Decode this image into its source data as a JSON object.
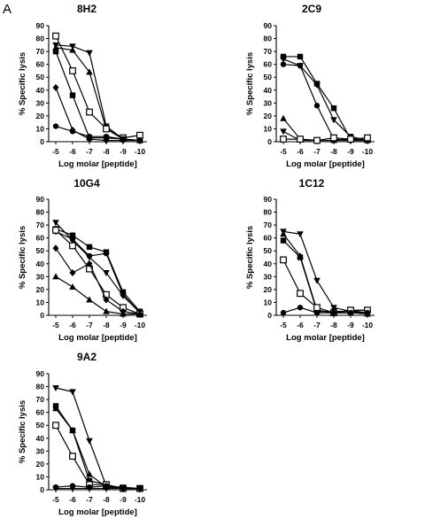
{
  "figure": {
    "panel_letter": "A"
  },
  "chart_data": [
    {
      "type": "line",
      "title": "8H2",
      "xlabel": "Log molar [peptide]",
      "ylabel": "% Specific lysis",
      "x": [
        -5,
        -6,
        -7,
        -8,
        -9,
        -10
      ],
      "xtick_labels": [
        "-5",
        "-6",
        "-7",
        "-8",
        "-9",
        "-10"
      ],
      "ylim": [
        0,
        90
      ],
      "yticks": [
        0,
        10,
        20,
        30,
        40,
        50,
        60,
        70,
        80,
        90
      ],
      "grid": false,
      "series": [
        {
          "marker": "triangle-down",
          "values": [
            75,
            74,
            69,
            12,
            2,
            1
          ]
        },
        {
          "marker": "triangle-up",
          "values": [
            73,
            71,
            54,
            10,
            2,
            1
          ]
        },
        {
          "marker": "square-open",
          "values": [
            82,
            55,
            23,
            10,
            3,
            5
          ]
        },
        {
          "marker": "square",
          "values": [
            70,
            36,
            3,
            3,
            2,
            1
          ]
        },
        {
          "marker": "diamond",
          "values": [
            42,
            9,
            2,
            1,
            1,
            1
          ]
        },
        {
          "marker": "circle",
          "values": [
            12,
            8,
            4,
            4,
            2,
            1
          ]
        }
      ]
    },
    {
      "type": "line",
      "title": "2C9",
      "xlabel": "Log molar [peptide]",
      "ylabel": "% Specific lysis",
      "x": [
        -5,
        -6,
        -7,
        -8,
        -9,
        -10
      ],
      "xtick_labels": [
        "-5",
        "-6",
        "-7",
        "-8",
        "-9",
        "-10"
      ],
      "ylim": [
        0,
        90
      ],
      "yticks": [
        0,
        10,
        20,
        30,
        40,
        50,
        60,
        70,
        80,
        90
      ],
      "grid": false,
      "series": [
        {
          "marker": "square",
          "values": [
            66,
            66,
            45,
            26,
            2,
            1
          ]
        },
        {
          "marker": "triangle-down",
          "values": [
            64,
            59,
            44,
            17,
            4,
            1
          ]
        },
        {
          "marker": "circle",
          "values": [
            60,
            59,
            28,
            2,
            1,
            1
          ]
        },
        {
          "marker": "triangle-up",
          "values": [
            18,
            2,
            1,
            1,
            2,
            1
          ]
        },
        {
          "marker": "triangle-down",
          "values": [
            8,
            1,
            1,
            1,
            1,
            1
          ]
        },
        {
          "marker": "square-open",
          "values": [
            2,
            2,
            1,
            3,
            2,
            3
          ]
        }
      ]
    },
    {
      "type": "line",
      "title": "10G4",
      "xlabel": "Log molar [peptide]",
      "ylabel": "% Specific lysis",
      "x": [
        -5,
        -6,
        -7,
        -8,
        -9,
        -10
      ],
      "xtick_labels": [
        "-5",
        "-6",
        "-7",
        "-8",
        "-9",
        "-10"
      ],
      "ylim": [
        0,
        90
      ],
      "yticks": [
        0,
        10,
        20,
        30,
        40,
        50,
        60,
        70,
        80,
        90
      ],
      "grid": false,
      "series": [
        {
          "marker": "triangle-down",
          "values": [
            72,
            58,
            45,
            33,
            15,
            2
          ]
        },
        {
          "marker": "square",
          "values": [
            67,
            62,
            53,
            49,
            18,
            3
          ]
        },
        {
          "marker": "circle",
          "values": [
            65,
            59,
            46,
            48,
            16,
            2
          ]
        },
        {
          "marker": "square-open",
          "values": [
            66,
            54,
            36,
            16,
            6,
            1
          ]
        },
        {
          "marker": "diamond",
          "values": [
            52,
            33,
            40,
            12,
            3,
            1
          ]
        },
        {
          "marker": "triangle-up",
          "values": [
            30,
            22,
            12,
            3,
            1,
            1
          ]
        }
      ]
    },
    {
      "type": "line",
      "title": "1C12",
      "xlabel": "Log molar [peptide]",
      "ylabel": "% Specific lysis",
      "x": [
        -5,
        -6,
        -7,
        -8,
        -9,
        -10
      ],
      "xtick_labels": [
        "-5",
        "-6",
        "-7",
        "-8",
        "-9",
        "-10"
      ],
      "ylim": [
        0,
        90
      ],
      "yticks": [
        0,
        10,
        20,
        30,
        40,
        50,
        60,
        70,
        80,
        90
      ],
      "grid": false,
      "series": [
        {
          "marker": "triangle-down",
          "values": [
            65,
            63,
            27,
            6,
            3,
            2
          ]
        },
        {
          "marker": "triangle-up",
          "values": [
            63,
            46,
            4,
            2,
            2,
            1
          ]
        },
        {
          "marker": "square",
          "values": [
            58,
            45,
            3,
            3,
            3,
            4
          ]
        },
        {
          "marker": "square-open",
          "values": [
            43,
            17,
            6,
            2,
            4,
            4
          ]
        },
        {
          "marker": "circle",
          "values": [
            2,
            6,
            2,
            2,
            2,
            2
          ]
        }
      ]
    },
    {
      "type": "line",
      "title": "9A2",
      "xlabel": "Log molar [peptide]",
      "ylabel": "% Specific lysis",
      "x": [
        -5,
        -6,
        -7,
        -8,
        -9,
        -10
      ],
      "xtick_labels": [
        "-5",
        "-6",
        "-7",
        "-8",
        "-9",
        "-10"
      ],
      "ylim": [
        0,
        90
      ],
      "yticks": [
        0,
        10,
        20,
        30,
        40,
        50,
        60,
        70,
        80,
        90
      ],
      "grid": false,
      "series": [
        {
          "marker": "triangle-down",
          "values": [
            79,
            76,
            38,
            3,
            2,
            1
          ]
        },
        {
          "marker": "square",
          "values": [
            65,
            46,
            7,
            4,
            1,
            1
          ]
        },
        {
          "marker": "triangle-up",
          "values": [
            63,
            46,
            12,
            2,
            1,
            1
          ]
        },
        {
          "marker": "square-open",
          "values": [
            50,
            26,
            4,
            4,
            1,
            1
          ]
        },
        {
          "marker": "circle",
          "values": [
            2,
            3,
            2,
            3,
            1,
            1
          ]
        },
        {
          "marker": "triangle-down",
          "values": [
            1,
            1,
            1,
            1,
            1,
            1
          ]
        }
      ]
    }
  ]
}
